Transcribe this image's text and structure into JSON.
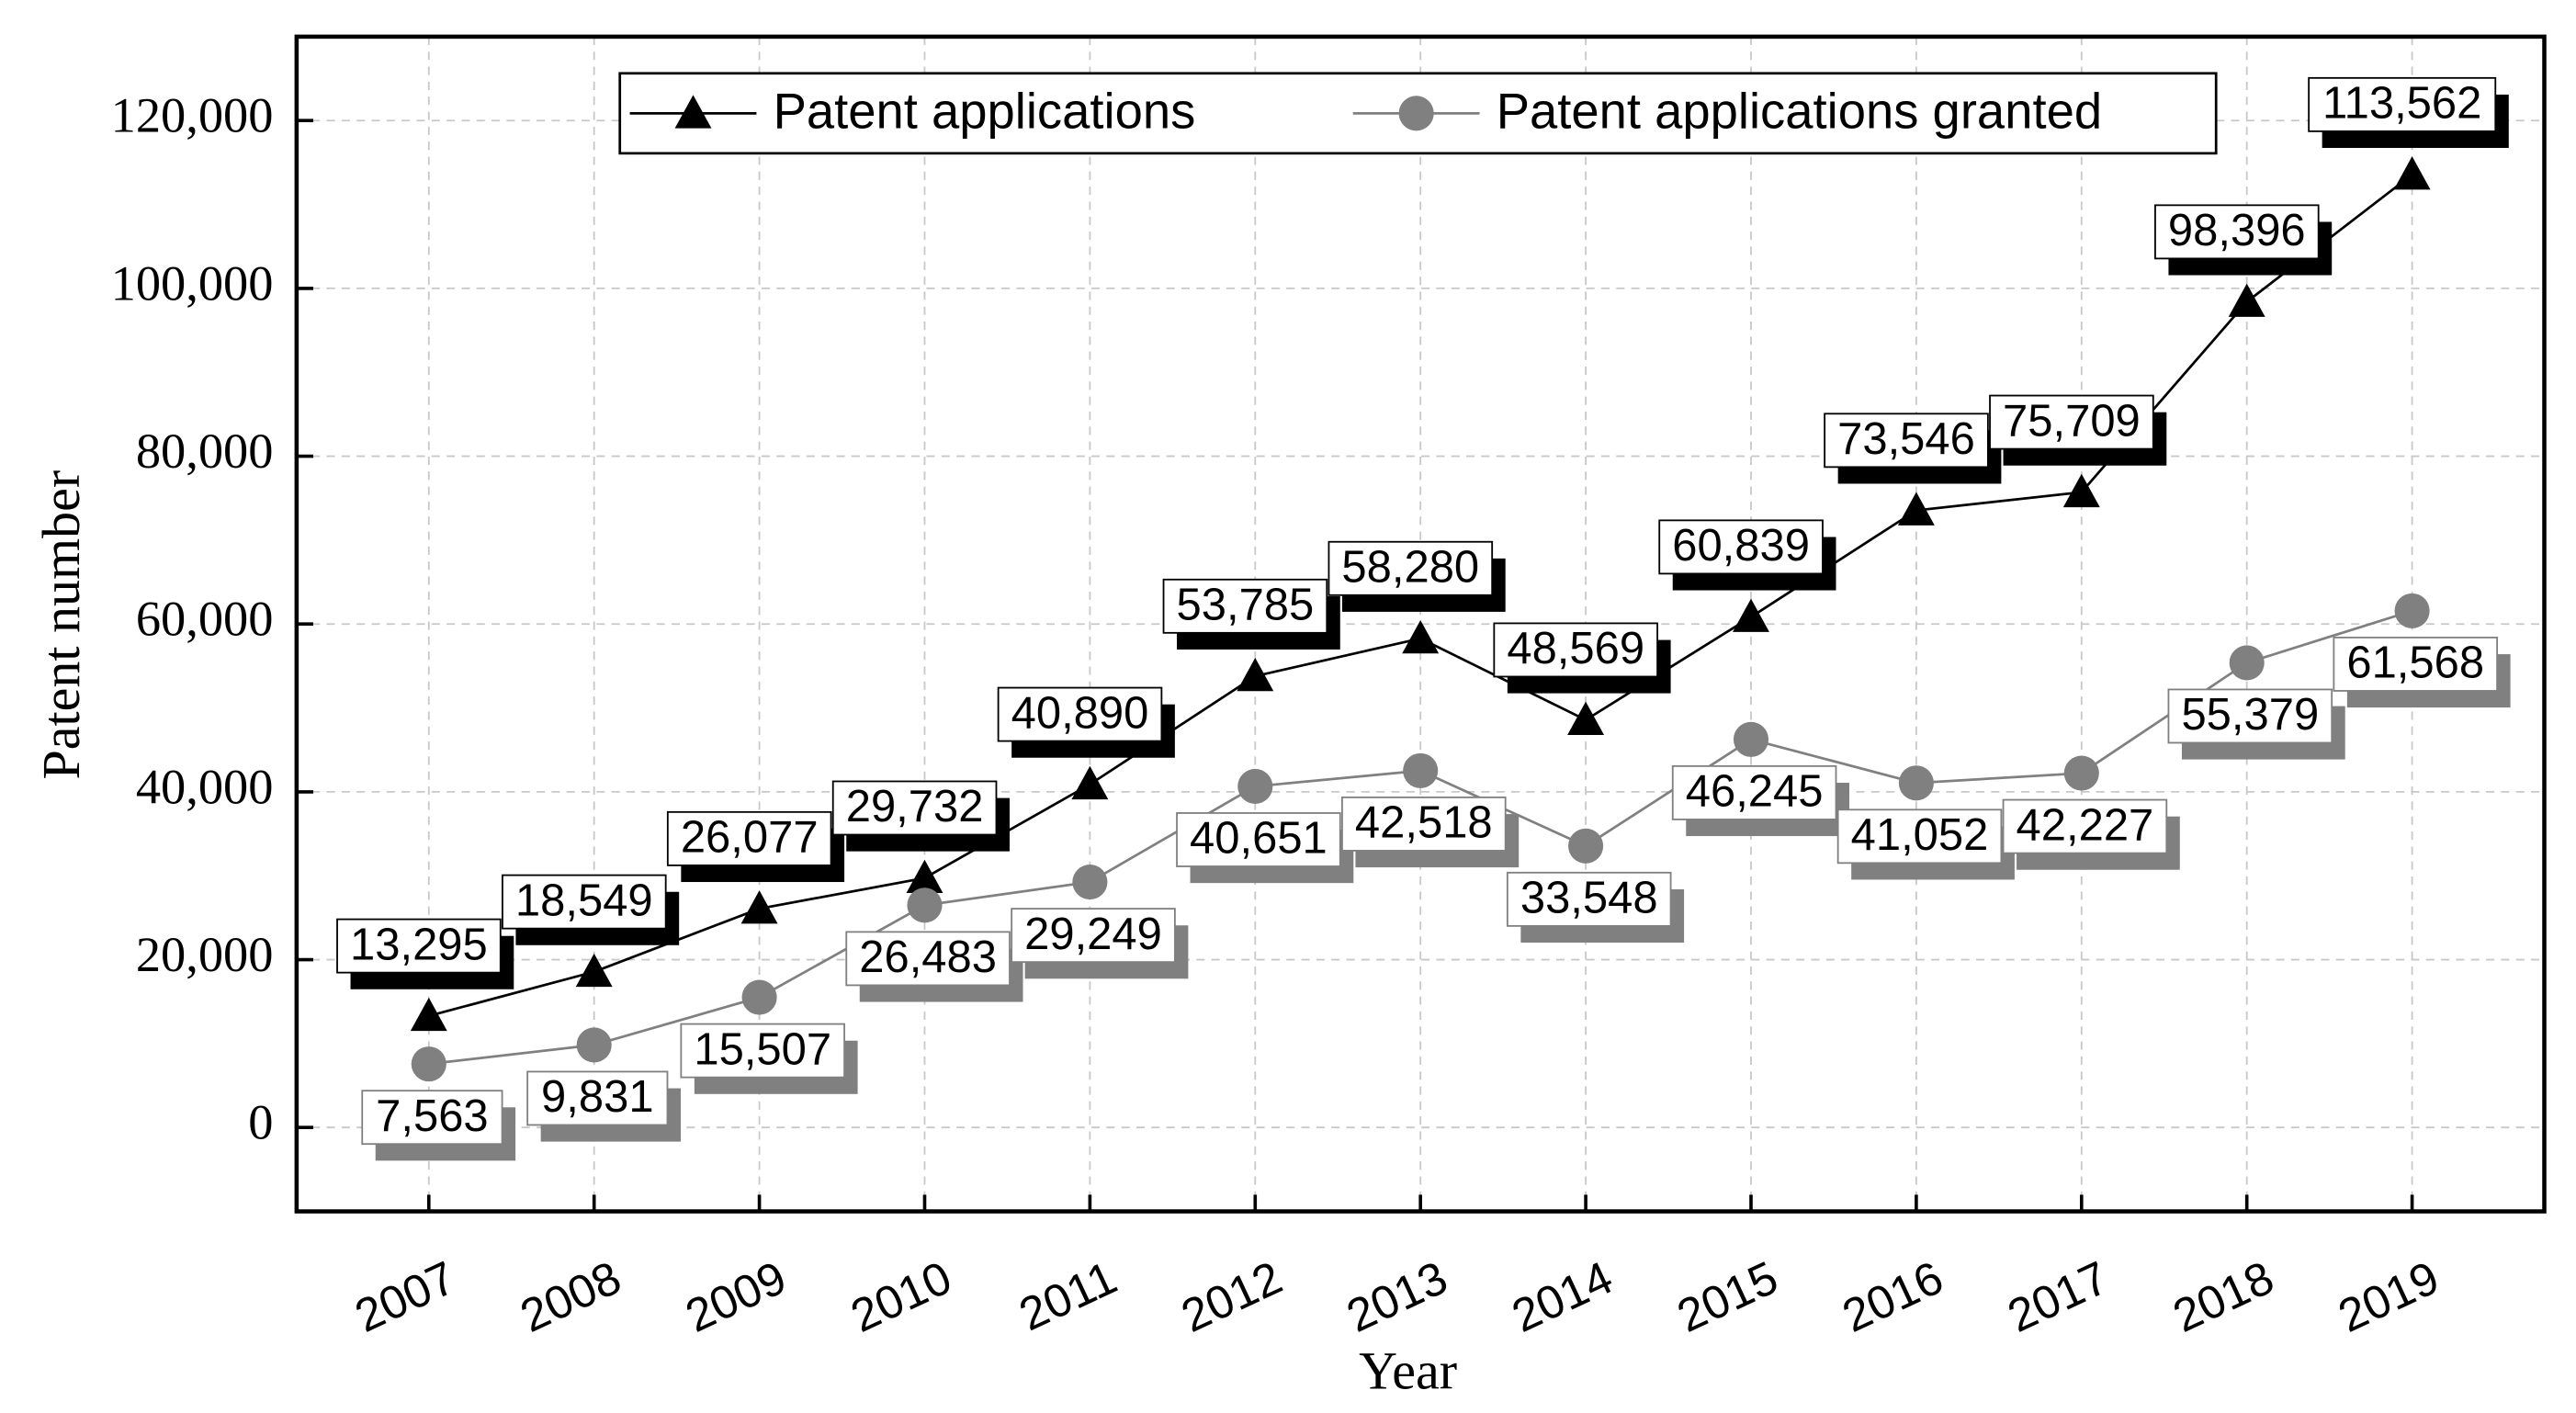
{
  "chart_data": {
    "type": "line",
    "x_label": "Year",
    "y_label": "Patent number",
    "x": [
      2007,
      2008,
      2009,
      2010,
      2011,
      2012,
      2013,
      2014,
      2015,
      2016,
      2017,
      2018,
      2019
    ],
    "series": [
      {
        "name": "Patent applications",
        "color": "#000000",
        "marker": "triangle",
        "values": [
          13295,
          18549,
          26077,
          29732,
          40890,
          53785,
          58280,
          48569,
          60839,
          73546,
          75709,
          98396,
          113562
        ],
        "value_labels": [
          "13,295",
          "18,549",
          "26,077",
          "29,732",
          "40,890",
          "53,785",
          "58,280",
          "48,569",
          "60,839",
          "73,546",
          "75,709",
          "98,396",
          "113,562"
        ]
      },
      {
        "name": "Patent applications granted",
        "color": "#808080",
        "marker": "circle",
        "values": [
          7563,
          9831,
          15507,
          26483,
          29249,
          40651,
          42518,
          33548,
          46245,
          41052,
          42227,
          55379,
          61568
        ],
        "value_labels": [
          "7,563",
          "9,831",
          "15,507",
          "26,483",
          "29,249",
          "40,651",
          "42,518",
          "33,548",
          "46,245",
          "41,052",
          "42,227",
          "55,379",
          "61,568"
        ]
      }
    ],
    "xlim": [
      2006.2,
      2019.8
    ],
    "xticks": [
      2007,
      2008,
      2009,
      2010,
      2011,
      2012,
      2013,
      2014,
      2015,
      2016,
      2017,
      2018,
      2019
    ],
    "ylim": [
      -10000,
      130000
    ],
    "yticks": [
      0,
      {
        "value": 20000,
        "label": "20,000"
      },
      {
        "value": 40000,
        "label": "40,000"
      },
      {
        "value": 60000,
        "label": "60,000"
      },
      {
        "value": 80000,
        "label": "80,000"
      },
      {
        "value": 100000,
        "label": "100,000"
      },
      {
        "value": 120000,
        "label": "120,000"
      }
    ],
    "grid": true,
    "legend": "top"
  }
}
